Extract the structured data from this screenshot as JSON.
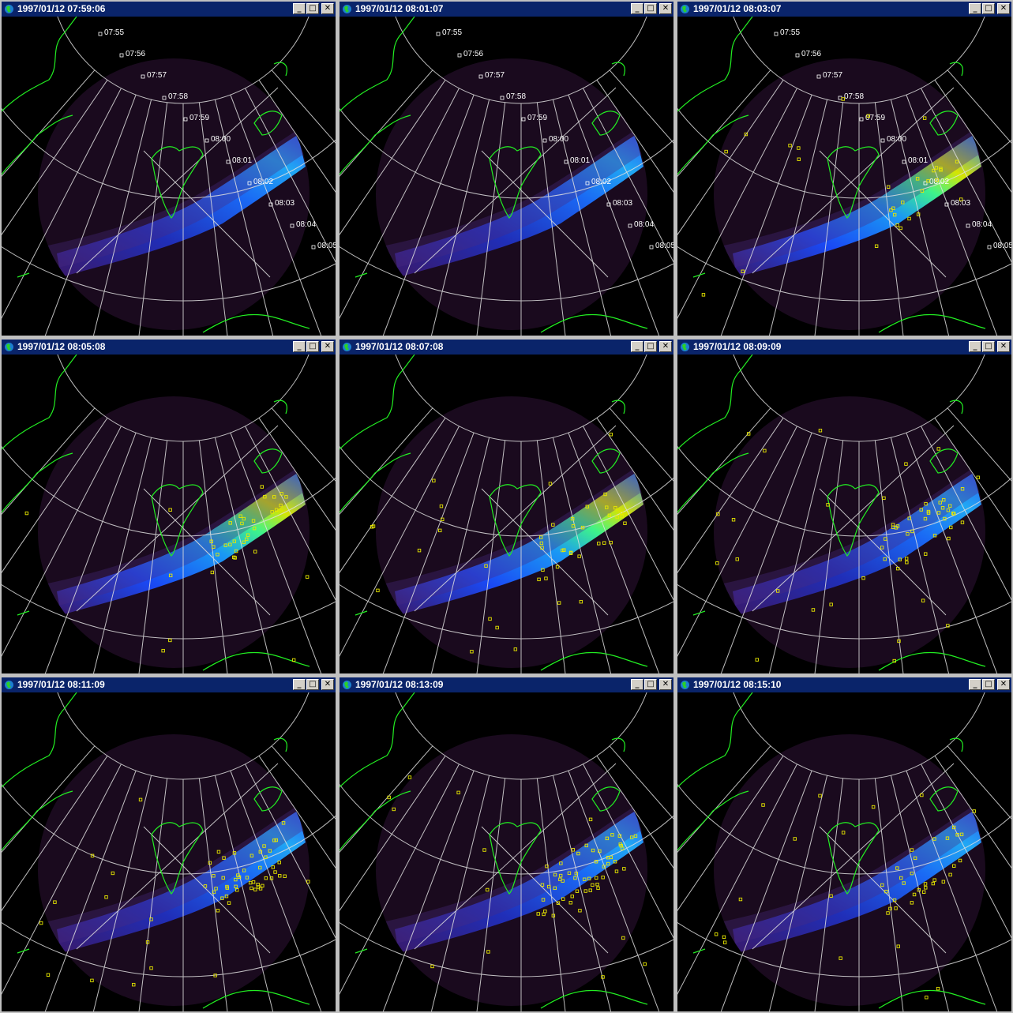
{
  "windows": [
    {
      "title": "1997/01/12 07:59:06",
      "time_labels": [
        "07:55",
        "07:56",
        "07:57",
        "07:58",
        "07:59",
        "08:00",
        "08:01",
        "08:02",
        "08:03",
        "08:04",
        "08:05"
      ],
      "auroral_intensity": "medium",
      "detections": 0
    },
    {
      "title": "1997/01/12 08:01:07",
      "time_labels": [
        "07:55",
        "07:56",
        "07:57",
        "07:58",
        "07:59",
        "08:00",
        "08:01",
        "08:02",
        "08:03",
        "08:04",
        "08:05"
      ],
      "auroral_intensity": "medium",
      "detections": 0
    },
    {
      "title": "1997/01/12 08:03:07",
      "time_labels": [
        "07:55",
        "07:56",
        "07:57",
        "07:58",
        "07:59",
        "08:00",
        "08:01",
        "08:02",
        "08:03",
        "08:04",
        "08:05"
      ],
      "auroral_intensity": "high",
      "detections": 30
    },
    {
      "title": "1997/01/12 08:05:08",
      "time_labels": [],
      "auroral_intensity": "high",
      "detections": 35
    },
    {
      "title": "1997/01/12 08:07:08",
      "time_labels": [],
      "auroral_intensity": "high",
      "detections": 45
    },
    {
      "title": "1997/01/12 08:09:09",
      "time_labels": [],
      "auroral_intensity": "medium",
      "detections": 55
    },
    {
      "title": "1997/01/12 08:11:09",
      "time_labels": [],
      "auroral_intensity": "medium",
      "detections": 60
    },
    {
      "title": "1997/01/12 08:13:09",
      "time_labels": [],
      "auroral_intensity": "medium",
      "detections": 65
    },
    {
      "title": "1997/01/12 08:15:10",
      "time_labels": [],
      "auroral_intensity": "medium",
      "detections": 45
    }
  ],
  "icons": {
    "window": "globe-icon",
    "minimize": "minimize-icon",
    "maximize": "maximize-icon",
    "close": "close-icon"
  },
  "colors": {
    "titlebar": "#0a246a",
    "coastline": "#22ee22",
    "grid": "#e0e0e0",
    "marker": "#e8e800",
    "aurora_low": "#2a0d4a",
    "aurora_mid": "#1a5cff",
    "aurora_high": "#f0e000"
  }
}
